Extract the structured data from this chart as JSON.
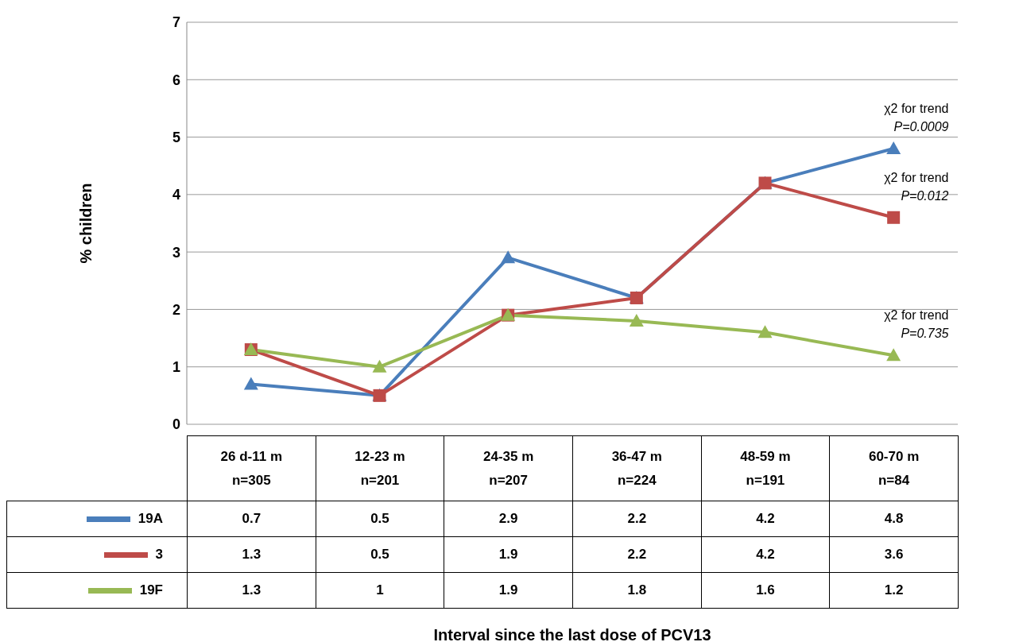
{
  "chart_data": {
    "type": "line",
    "ylabel": "% children",
    "categories": [
      "26 d-11 m\nn=305",
      "12-23 m\nn=201",
      "24-35 m\nn=207",
      "36-47 m\nn=224",
      "48-59  m\nn=191",
      "60-70 m\nn=84"
    ],
    "series": [
      {
        "name": "19A",
        "color": "#4a7ebb",
        "marker": "triangle",
        "values": [
          0.7,
          0.5,
          2.9,
          2.2,
          4.2,
          4.8
        ]
      },
      {
        "name": "3",
        "color": "#be4b48",
        "marker": "square",
        "values": [
          1.3,
          0.5,
          1.9,
          2.2,
          4.2,
          3.6
        ]
      },
      {
        "name": "19F",
        "color": "#98b954",
        "marker": "triangle",
        "values": [
          1.3,
          1,
          1.9,
          1.8,
          1.6,
          1.2
        ]
      }
    ],
    "ylim": [
      0,
      7
    ],
    "yticks": [
      0,
      1,
      2,
      3,
      4,
      5,
      6,
      7
    ],
    "grid": "y",
    "legend": "bottom",
    "data_labels": true,
    "annotations": [
      {
        "text": "χ2 for trend\nP=0.0009",
        "x": "60-70 m\nn=84",
        "y": 4.8
      },
      {
        "text": "χ2 for trend\nP=0.012",
        "x": "60-70 m\nn=84",
        "y": 3.6
      },
      {
        "text": "χ2 for trend\nP=0.735",
        "x": "60-70 m\nn=84",
        "y": 1.2
      },
      "Interval since the last dose of PCV13"
    ]
  }
}
